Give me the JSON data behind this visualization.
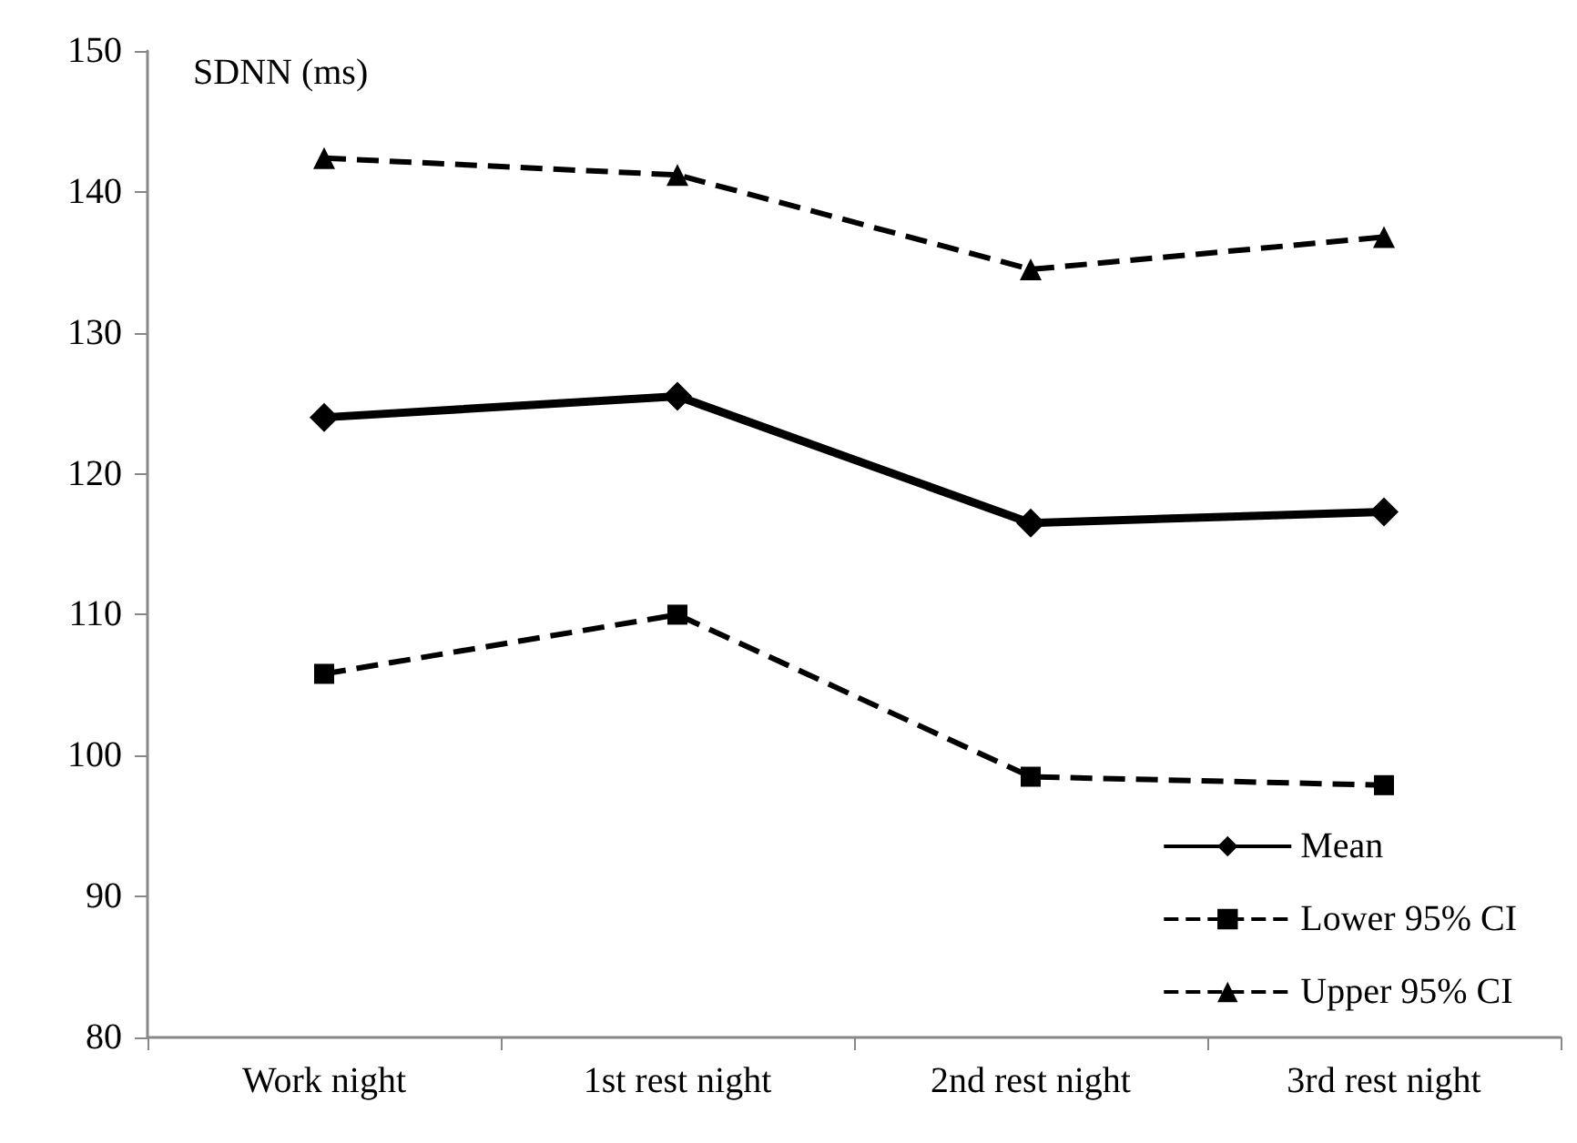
{
  "chart_data": {
    "type": "line",
    "ylabel": "SDNN (ms)",
    "categories": [
      "Work night",
      "1st rest night",
      "2nd rest night",
      "3rd rest night"
    ],
    "series": [
      {
        "name": "Mean",
        "color": "#000000",
        "values": [
          124.0,
          125.5,
          116.5,
          117.3
        ],
        "marker": "diamond",
        "line_style": "solid"
      },
      {
        "name": "Lower 95% CI",
        "color": "#000000",
        "values": [
          105.8,
          110.0,
          98.5,
          97.9
        ],
        "marker": "square",
        "line_style": "dashed"
      },
      {
        "name": "Upper 95% CI",
        "color": "#000000",
        "values": [
          142.4,
          141.2,
          134.5,
          136.8
        ],
        "marker": "triangle",
        "line_style": "dashed"
      }
    ],
    "ylim": [
      80,
      150
    ],
    "yticks": [
      80,
      90,
      100,
      110,
      120,
      130,
      140,
      150
    ],
    "grid": false,
    "legend": "bottom right"
  }
}
